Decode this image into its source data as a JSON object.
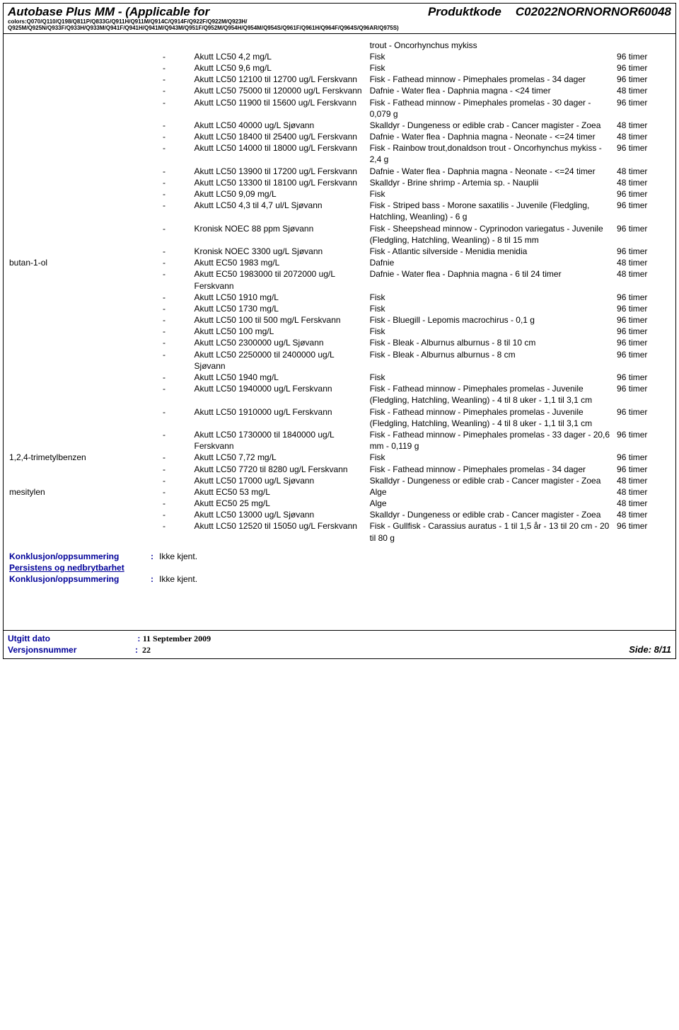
{
  "header": {
    "title": "Autobase Plus MM - (Applicable for",
    "product_code_label": "Produktkode",
    "product_code": "C02022NORNORNOR60048",
    "subline1": "colors:Q070/Q110/Q198/Q811P/Q833G/Q911H/Q911M/Q914C/Q914F/Q922F/Q922M/Q923H/",
    "subline2": "Q925M/Q925N/Q933F/Q933H/Q933M/Q941F/Q941H/Q941M/Q943M/Q951F/Q952M/Q954H/Q954M/Q954S/Q961F/Q961H/Q964F/Q964S/Q96AR/Q975S)"
  },
  "top_species": "trout - Oncorhynchus mykiss",
  "rows": [
    {
      "s": "",
      "d": "-",
      "t": "Akutt LC50 4,2 mg/L",
      "sp": "Fisk",
      "du": "96 timer"
    },
    {
      "s": "",
      "d": "-",
      "t": "Akutt LC50 9,6 mg/L",
      "sp": "Fisk",
      "du": "96 timer"
    },
    {
      "s": "",
      "d": "-",
      "t": "Akutt LC50 12100 til 12700 ug/L Ferskvann",
      "sp": "Fisk - Fathead minnow - Pimephales promelas - 34 dager",
      "du": "96 timer"
    },
    {
      "s": "",
      "d": "-",
      "t": "Akutt LC50 75000 til 120000 ug/L Ferskvann",
      "sp": "Dafnie - Water flea - Daphnia magna - <24 timer",
      "du": "48 timer"
    },
    {
      "s": "",
      "d": "-",
      "t": "Akutt LC50 11900 til 15600 ug/L Ferskvann",
      "sp": "Fisk - Fathead minnow - Pimephales promelas - 30 dager - 0,079 g",
      "du": "96 timer"
    },
    {
      "s": "",
      "d": "-",
      "t": "Akutt LC50 40000 ug/L Sjøvann",
      "sp": "Skalldyr - Dungeness or edible crab - Cancer magister - Zoea",
      "du": "48 timer"
    },
    {
      "s": "",
      "d": "-",
      "t": "Akutt LC50 18400 til 25400 ug/L Ferskvann",
      "sp": "Dafnie - Water flea - Daphnia magna - Neonate - <=24 timer",
      "du": "48 timer"
    },
    {
      "s": "",
      "d": "-",
      "t": "Akutt LC50 14000 til 18000 ug/L Ferskvann",
      "sp": "Fisk - Rainbow trout,donaldson trout - Oncorhynchus mykiss - 2,4 g",
      "du": "96 timer"
    },
    {
      "s": "",
      "d": "-",
      "t": "Akutt LC50 13900 til 17200 ug/L Ferskvann",
      "sp": "Dafnie - Water flea - Daphnia magna - Neonate - <=24 timer",
      "du": "48 timer"
    },
    {
      "s": "",
      "d": "-",
      "t": "Akutt LC50 13300 til 18100 ug/L Ferskvann",
      "sp": "Skalldyr - Brine shrimp - Artemia sp. - Nauplii",
      "du": "48 timer"
    },
    {
      "s": "",
      "d": "-",
      "t": "Akutt LC50 9,09 mg/L",
      "sp": "Fisk",
      "du": "96 timer"
    },
    {
      "s": "",
      "d": "-",
      "t": "Akutt LC50 4,3 til 4,7 ul/L Sjøvann",
      "sp": "Fisk - Striped bass - Morone saxatilis - Juvenile (Fledgling, Hatchling, Weanling) - 6 g",
      "du": "96 timer"
    },
    {
      "s": "",
      "d": "-",
      "t": "Kronisk NOEC 88 ppm Sjøvann",
      "sp": "Fisk - Sheepshead minnow - Cyprinodon variegatus - Juvenile (Fledgling, Hatchling, Weanling) - 8 til 15 mm",
      "du": "96 timer"
    },
    {
      "s": "",
      "d": "-",
      "t": "Kronisk NOEC 3300 ug/L Sjøvann",
      "sp": "Fisk - Atlantic silverside - Menidia menidia",
      "du": "96 timer"
    },
    {
      "s": "butan-1-ol",
      "d": "-",
      "t": "Akutt EC50 1983 mg/L",
      "sp": "Dafnie",
      "du": "48 timer"
    },
    {
      "s": "",
      "d": "-",
      "t": "Akutt EC50 1983000 til 2072000 ug/L Ferskvann",
      "sp": "Dafnie - Water flea - Daphnia magna - 6 til 24 timer",
      "du": "48 timer"
    },
    {
      "s": "",
      "d": "-",
      "t": "Akutt LC50 1910 mg/L",
      "sp": "Fisk",
      "du": "96 timer"
    },
    {
      "s": "",
      "d": "-",
      "t": "Akutt LC50 1730 mg/L",
      "sp": "Fisk",
      "du": "96 timer"
    },
    {
      "s": "",
      "d": "-",
      "t": "Akutt LC50 100 til 500 mg/L Ferskvann",
      "sp": "Fisk - Bluegill - Lepomis macrochirus - 0,1 g",
      "du": "96 timer"
    },
    {
      "s": "",
      "d": "-",
      "t": "Akutt LC50 100 mg/L",
      "sp": "Fisk",
      "du": "96 timer"
    },
    {
      "s": "",
      "d": "-",
      "t": "Akutt LC50 2300000 ug/L Sjøvann",
      "sp": "Fisk - Bleak - Alburnus alburnus - 8 til 10 cm",
      "du": "96 timer"
    },
    {
      "s": "",
      "d": "-",
      "t": "Akutt LC50 2250000 til 2400000 ug/L Sjøvann",
      "sp": "Fisk - Bleak - Alburnus alburnus - 8 cm",
      "du": "96 timer"
    },
    {
      "s": "",
      "d": "-",
      "t": "Akutt LC50 1940 mg/L",
      "sp": "Fisk",
      "du": "96 timer"
    },
    {
      "s": "",
      "d": "-",
      "t": "Akutt LC50 1940000 ug/L Ferskvann",
      "sp": "Fisk - Fathead minnow - Pimephales promelas - Juvenile (Fledgling, Hatchling, Weanling) - 4 til 8 uker - 1,1 til 3,1 cm",
      "du": "96 timer"
    },
    {
      "s": "",
      "d": "-",
      "t": "Akutt LC50 1910000 ug/L Ferskvann",
      "sp": "Fisk - Fathead minnow - Pimephales promelas - Juvenile (Fledgling, Hatchling, Weanling) - 4 til 8 uker - 1,1 til 3,1 cm",
      "du": "96 timer"
    },
    {
      "s": "",
      "d": "-",
      "t": "Akutt LC50 1730000 til 1840000 ug/L Ferskvann",
      "sp": "Fisk - Fathead minnow - Pimephales promelas - 33 dager - 20,6 mm - 0,119 g",
      "du": "96 timer"
    },
    {
      "s": "1,2,4-trimetylbenzen",
      "d": "-",
      "t": "Akutt LC50 7,72 mg/L",
      "sp": "Fisk",
      "du": "96 timer"
    },
    {
      "s": "",
      "d": "-",
      "t": "Akutt LC50 7720 til 8280 ug/L Ferskvann",
      "sp": "Fisk - Fathead minnow - Pimephales promelas - 34 dager",
      "du": "96 timer"
    },
    {
      "s": "",
      "d": "-",
      "t": "Akutt LC50 17000 ug/L Sjøvann",
      "sp": "Skalldyr - Dungeness or edible crab - Cancer magister - Zoea",
      "du": "48 timer"
    },
    {
      "s": "mesitylen",
      "d": "-",
      "t": "Akutt EC50 53 mg/L",
      "sp": "Alge",
      "du": "48 timer"
    },
    {
      "s": "",
      "d": "-",
      "t": "Akutt EC50 25 mg/L",
      "sp": "Alge",
      "du": "48 timer"
    },
    {
      "s": "",
      "d": "-",
      "t": "Akutt LC50 13000 ug/L Sjøvann",
      "sp": "Skalldyr - Dungeness or edible crab - Cancer magister - Zoea",
      "du": "48 timer"
    },
    {
      "s": "",
      "d": "-",
      "t": "Akutt LC50 12520 til 15050 ug/L Ferskvann",
      "sp": "Fisk - Gullfisk - Carassius auratus - 1 til 1,5 år - 13 til 20 cm - 20 til 80 g",
      "du": "96 timer"
    }
  ],
  "summary": {
    "conclusion_label": "Konklusjon/oppsummering",
    "conclusion_value": "Ikke kjent.",
    "persistence_label": "Persistens og nedbrytbarhet"
  },
  "footer": {
    "date_label": "Utgitt dato",
    "date_value": "11 September 2009",
    "version_label": "Versjonsnummer",
    "version_value": "22",
    "page": "Side: 8/11"
  }
}
